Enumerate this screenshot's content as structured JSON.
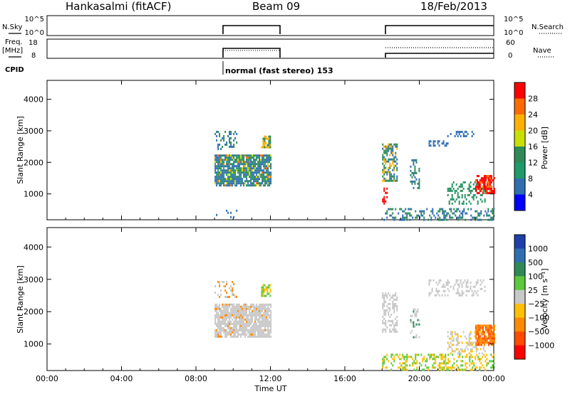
{
  "header": {
    "station": "Hankasalmi (fitACF)",
    "beam": "Beam 09",
    "date": "18/Feb/2013"
  },
  "top_panels": {
    "nsky_label": "N.Sky",
    "nsearch_label": "N.Search",
    "freq_label": "Freq.",
    "freq_unit": "[MHz]",
    "nave_label": "Nave",
    "cpid_label": "CPID",
    "cpid_text": "normal (fast stereo) 153",
    "noise_ticks_left": [
      "10^5",
      "10^0"
    ],
    "noise_ticks_right": [
      "10^5",
      "10^0"
    ],
    "freq_ticks": [
      "18",
      "8"
    ],
    "nave_ticks": [
      "60",
      "0"
    ]
  },
  "power_scale": {
    "title": "Power [dB]",
    "ticks": [
      "28",
      "24",
      "20",
      "16",
      "12",
      "8",
      "4"
    ],
    "colors": [
      "#ff0000",
      "#ff6a00",
      "#ffb000",
      "#c8e000",
      "#2e8b57",
      "#1f9a6a",
      "#2f6fb0",
      "#0000ff"
    ]
  },
  "velocity_scale": {
    "title": "Velocity [m s⁻¹]",
    "ticks": [
      "1000",
      "500",
      "100",
      "25",
      "−25",
      "−100",
      "−500",
      "−1000"
    ],
    "colors": [
      "#1f3faa",
      "#2f6fb0",
      "#2e8b57",
      "#5cc83c",
      "#c8c8c8",
      "#ffc000",
      "#ff8a00",
      "#ff4a00",
      "#ff0000"
    ]
  },
  "chart_data": [
    {
      "type": "heatmap",
      "title": "Power",
      "xlabel": "Time UT",
      "ylabel": "Slant Range [km]",
      "x_ticks": [
        "00:00",
        "04:00",
        "08:00",
        "12:00",
        "16:00",
        "20:00",
        "00:00"
      ],
      "y_ticks": [
        1000,
        2000,
        3000,
        4000
      ],
      "ylim": [
        180,
        4600
      ],
      "xlim_hours": [
        0,
        24
      ],
      "colorbar": "Power [dB]",
      "scatter_regions": [
        {
          "t0": 9.0,
          "t1": 12.0,
          "r0": 1250,
          "r1": 2250,
          "dominant": "blue-green"
        },
        {
          "t0": 18.0,
          "t1": 24.0,
          "r0": 700,
          "r1": 3000,
          "dominant": "blue-green-red"
        }
      ]
    },
    {
      "type": "heatmap",
      "title": "Velocity",
      "xlabel": "Time UT",
      "ylabel": "Slant Range [km]",
      "x_ticks": [
        "00:00",
        "04:00",
        "08:00",
        "12:00",
        "16:00",
        "20:00",
        "00:00"
      ],
      "y_ticks": [
        1000,
        2000,
        3000,
        4000
      ],
      "ylim": [
        180,
        4600
      ],
      "xlim_hours": [
        0,
        24
      ],
      "colorbar": "Velocity [m s⁻¹]",
      "scatter_regions": [
        {
          "t0": 9.0,
          "t1": 12.0,
          "r0": 1250,
          "r1": 2250,
          "dominant": "grey"
        },
        {
          "t0": 18.0,
          "t1": 24.0,
          "r0": 700,
          "r1": 3000,
          "dominant": "grey-orange"
        }
      ]
    }
  ],
  "xaxis_title": "Time UT",
  "xaxis_ticks": [
    "00:00",
    "04:00",
    "08:00",
    "12:00",
    "16:00",
    "20:00",
    "00:00"
  ]
}
